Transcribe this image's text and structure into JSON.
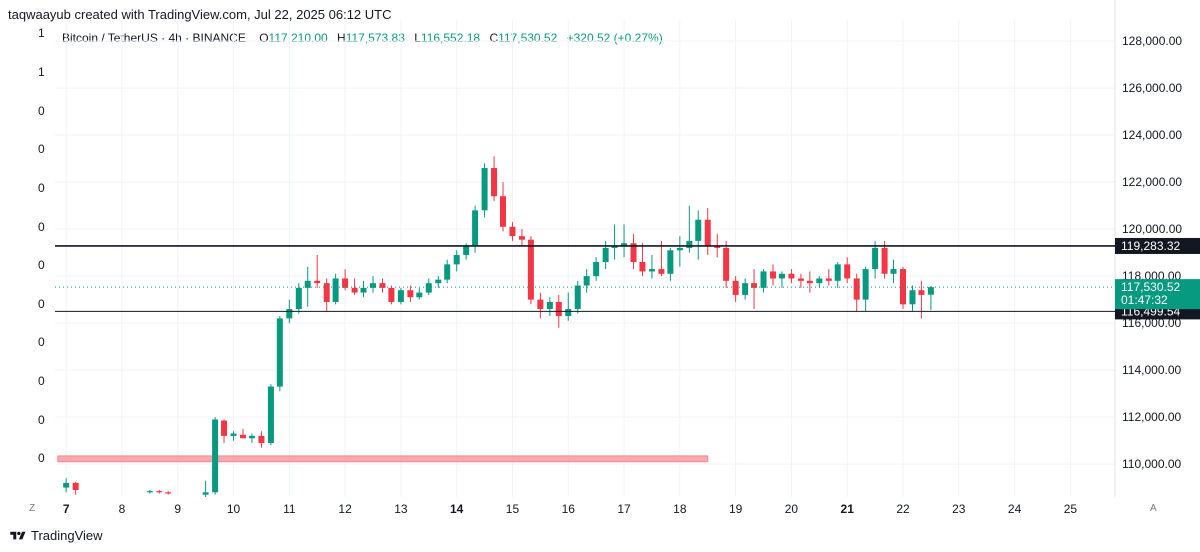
{
  "credit": "taqwaayub created with TradingView.com, Jul 22, 2025 06:12 UTC",
  "legend": {
    "symbol": "Bitcoin / TetherUS · 4h · BINANCE",
    "o_label": "O",
    "o_value": "117,210.00",
    "h_label": "H",
    "h_value": "117,573.83",
    "l_label": "L",
    "l_value": "116,552.18",
    "c_label": "C",
    "c_value": "117,530.52",
    "change": "+320.52 (+0.27%)"
  },
  "left_axis_ticks": [
    "1",
    "1",
    "0",
    "0",
    "0",
    "0",
    "0",
    "0",
    "0",
    "0",
    "0",
    "0"
  ],
  "bottom_left_label": "Z",
  "bottom_right_label": "A",
  "footer": {
    "brand": "TradingView"
  },
  "colors": {
    "up": "#089981",
    "down": "#f23645",
    "zone": "#f7a9ae"
  },
  "chart_data": {
    "type": "candlestick",
    "title": "",
    "timeframe": "4h",
    "y_ticks": [
      "128,000.00",
      "126,000.00",
      "124,000.00",
      "122,000.00",
      "120,000.00",
      "118,000.00",
      "116,000.00",
      "114,000.00",
      "112,000.00",
      "110,000.00"
    ],
    "y_tick_values": [
      128000,
      126000,
      124000,
      122000,
      120000,
      118000,
      116000,
      114000,
      112000,
      110000
    ],
    "ylim": [
      108600,
      128900
    ],
    "x_ticks": [
      "7",
      "8",
      "9",
      "10",
      "11",
      "12",
      "13",
      "14",
      "15",
      "16",
      "17",
      "18",
      "19",
      "20",
      "21",
      "22",
      "23",
      "24",
      "25"
    ],
    "x_tick_days": [
      7,
      8,
      9,
      10,
      11,
      12,
      13,
      14,
      15,
      16,
      17,
      18,
      19,
      20,
      21,
      22,
      23,
      24,
      25
    ],
    "bold_x_ticks": [
      "7",
      "14",
      "21"
    ],
    "xlim": [
      6.8,
      25.8
    ],
    "levels": [
      {
        "price": 119283.32,
        "label": "119,283.32",
        "color": "#131722"
      },
      {
        "price": 116499.54,
        "label": "116,499.54",
        "color": "#131722"
      }
    ],
    "last_price": {
      "price": 117530.52,
      "label": "117,530.52",
      "countdown": "01:47:32",
      "color": "#089981"
    },
    "zone": {
      "from_day": 6.85,
      "to_day": 18.5,
      "low": 110100,
      "high": 110350
    },
    "candles": [
      [
        7.0,
        109000,
        109400,
        108800,
        109200
      ],
      [
        7.17,
        109200,
        109250,
        108700,
        108900
      ],
      [
        8.5,
        108800,
        108900,
        108750,
        108850
      ],
      [
        8.67,
        108850,
        108900,
        108750,
        108800
      ],
      [
        8.83,
        108800,
        108850,
        108700,
        108750
      ],
      [
        9.5,
        108700,
        109300,
        108600,
        108800
      ],
      [
        9.67,
        108800,
        112000,
        108700,
        111900
      ],
      [
        9.83,
        111850,
        111900,
        110900,
        111200
      ],
      [
        10.0,
        111200,
        111400,
        111000,
        111300
      ],
      [
        10.17,
        111250,
        111500,
        111100,
        111100
      ],
      [
        10.33,
        111100,
        111300,
        110900,
        111200
      ],
      [
        10.5,
        111200,
        111400,
        110700,
        110900
      ],
      [
        10.67,
        110900,
        113400,
        110800,
        113300
      ],
      [
        10.83,
        113300,
        116300,
        113100,
        116200
      ],
      [
        11.0,
        116200,
        117000,
        116000,
        116600
      ],
      [
        11.17,
        116600,
        117700,
        116400,
        117500
      ],
      [
        11.33,
        117500,
        118400,
        116700,
        117800
      ],
      [
        11.5,
        117800,
        118900,
        117500,
        117700
      ],
      [
        11.67,
        117700,
        117900,
        116500,
        116900
      ],
      [
        11.83,
        116900,
        118100,
        116800,
        117900
      ],
      [
        12.0,
        117900,
        118300,
        117400,
        117500
      ],
      [
        12.17,
        117500,
        117900,
        117200,
        117300
      ],
      [
        12.33,
        117300,
        117800,
        117100,
        117500
      ],
      [
        12.5,
        117500,
        118000,
        117300,
        117700
      ],
      [
        12.67,
        117700,
        117900,
        117300,
        117500
      ],
      [
        12.83,
        117500,
        117600,
        116800,
        116900
      ],
      [
        13.0,
        116900,
        117500,
        116800,
        117400
      ],
      [
        13.17,
        117400,
        117600,
        116900,
        117100
      ],
      [
        13.33,
        117100,
        117500,
        117000,
        117300
      ],
      [
        13.5,
        117300,
        117900,
        117200,
        117700
      ],
      [
        13.67,
        117700,
        118000,
        117500,
        117850
      ],
      [
        13.83,
        117850,
        118700,
        117700,
        118500
      ],
      [
        14.0,
        118500,
        119100,
        118200,
        118900
      ],
      [
        14.17,
        118900,
        119400,
        118700,
        119300
      ],
      [
        14.33,
        119300,
        121000,
        119000,
        120800
      ],
      [
        14.5,
        120800,
        122800,
        120500,
        122600
      ],
      [
        14.67,
        122600,
        123100,
        121200,
        121400
      ],
      [
        14.83,
        121400,
        122000,
        119900,
        120100
      ],
      [
        15.0,
        120100,
        120300,
        119500,
        119700
      ],
      [
        15.17,
        119700,
        120000,
        119300,
        119550
      ],
      [
        15.33,
        119550,
        119700,
        116800,
        117000
      ],
      [
        15.5,
        117000,
        117300,
        116200,
        116600
      ],
      [
        15.67,
        116600,
        117100,
        116300,
        116900
      ],
      [
        15.83,
        116900,
        117200,
        115800,
        116300
      ],
      [
        16.0,
        116300,
        117300,
        116100,
        116600
      ],
      [
        16.17,
        116600,
        117800,
        116400,
        117600
      ],
      [
        16.33,
        117600,
        118300,
        117300,
        118000
      ],
      [
        16.5,
        118000,
        118800,
        117800,
        118600
      ],
      [
        16.67,
        118600,
        119500,
        118300,
        119200
      ],
      [
        16.83,
        119200,
        120200,
        118700,
        119300
      ],
      [
        17.0,
        119300,
        120200,
        118800,
        119400
      ],
      [
        17.17,
        119400,
        119800,
        118300,
        118600
      ],
      [
        17.33,
        118600,
        119400,
        118000,
        118200
      ],
      [
        17.5,
        118200,
        118900,
        117900,
        118300
      ],
      [
        17.67,
        118300,
        119500,
        118000,
        118100
      ],
      [
        17.83,
        118100,
        119200,
        117800,
        119100
      ],
      [
        18.0,
        119100,
        119700,
        118400,
        119200
      ],
      [
        18.17,
        119200,
        121000,
        119000,
        119500
      ],
      [
        18.33,
        119500,
        120800,
        118700,
        120400
      ],
      [
        18.5,
        120400,
        120900,
        118900,
        119300
      ],
      [
        18.67,
        119300,
        119800,
        118800,
        119200
      ],
      [
        18.83,
        119200,
        119500,
        117500,
        117800
      ],
      [
        19.0,
        117800,
        118000,
        116900,
        117200
      ],
      [
        19.17,
        117200,
        117900,
        117000,
        117700
      ],
      [
        19.33,
        117700,
        118300,
        116600,
        117500
      ],
      [
        19.5,
        117500,
        118300,
        117300,
        118200
      ],
      [
        19.67,
        118200,
        118500,
        117600,
        117900
      ],
      [
        19.83,
        117900,
        118200,
        117500,
        118100
      ],
      [
        20.0,
        118100,
        118300,
        117700,
        117900
      ],
      [
        20.17,
        117900,
        118100,
        117500,
        117800
      ],
      [
        20.33,
        117800,
        118200,
        117300,
        117700
      ],
      [
        20.5,
        117700,
        118000,
        117500,
        117900
      ],
      [
        20.67,
        117900,
        118300,
        117600,
        117800
      ],
      [
        20.83,
        117800,
        118600,
        117500,
        118500
      ],
      [
        21.0,
        118500,
        118800,
        117700,
        117900
      ],
      [
        21.17,
        117900,
        118100,
        116500,
        117000
      ],
      [
        21.33,
        117000,
        118400,
        116500,
        118300
      ],
      [
        21.5,
        118300,
        119500,
        117900,
        119200
      ],
      [
        21.67,
        119200,
        119500,
        117900,
        118100
      ],
      [
        21.83,
        118100,
        118700,
        117700,
        118300
      ],
      [
        22.0,
        118300,
        118400,
        116600,
        116800
      ],
      [
        22.17,
        116800,
        117600,
        116500,
        117400
      ],
      [
        22.33,
        117400,
        117800,
        116200,
        117200
      ],
      [
        22.5,
        117210,
        117573.83,
        116552.18,
        117530.52
      ]
    ]
  }
}
